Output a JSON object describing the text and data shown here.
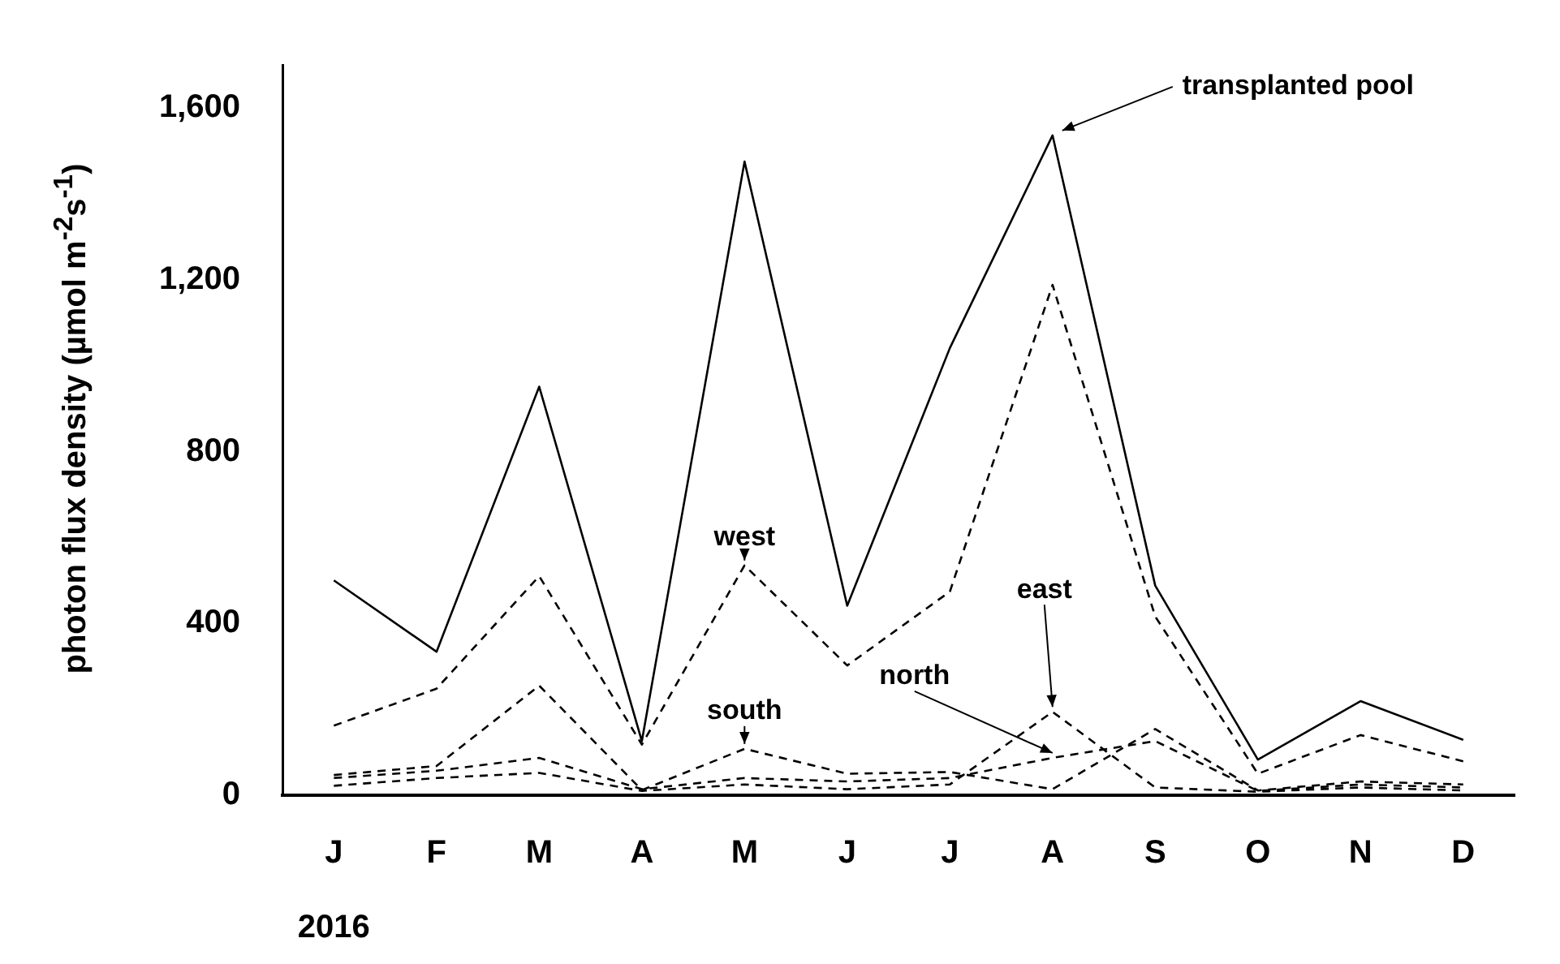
{
  "chart_data": {
    "type": "line",
    "ylabel": "photon flux density (µmol m$^{-2}$s$^{-1}$)",
    "categories": [
      "J",
      "F",
      "M",
      "A",
      "M",
      "J",
      "J",
      "A",
      "S",
      "O",
      "N",
      "D"
    ],
    "ylim": [
      0,
      1700
    ],
    "yticks": [
      0,
      {
        "value": 400,
        "label": "400"
      },
      {
        "value": 800,
        "label": "800"
      },
      {
        "value": 1200,
        "label": "1,200"
      },
      {
        "value": 1600,
        "label": "1,600"
      }
    ],
    "grid": false,
    "legend": false,
    "marker": "none",
    "annotations": [
      "2016"
    ],
    "series": [
      {
        "name": "transplanted pool",
        "color": "#000000",
        "line_style": "solid",
        "values": [
          500,
          334,
          951,
          126,
          1475,
          441,
          1041,
          1536,
          488,
          83,
          219,
          129
        ]
      },
      {
        "name": "west",
        "color": "#000000",
        "line_style": "dashed",
        "values": [
          162,
          248,
          510,
          118,
          535,
          302,
          474,
          1188,
          416,
          50,
          140,
          79
        ]
      },
      {
        "name": "south",
        "color": "#000000",
        "line_style": "dashed",
        "values": [
          47,
          68,
          255,
          12,
          108,
          50,
          54,
          14,
          154,
          11,
          32,
          25
        ]
      },
      {
        "name": "north",
        "color": "#000000",
        "line_style": "dashed",
        "values": [
          40,
          57,
          87,
          14,
          40,
          32,
          40,
          87,
          126,
          10,
          25,
          18
        ]
      },
      {
        "name": "east",
        "color": "#000000",
        "line_style": "dashed",
        "values": [
          22,
          40,
          52,
          10,
          25,
          14,
          25,
          194,
          18,
          8,
          18,
          11
        ]
      }
    ]
  }
}
